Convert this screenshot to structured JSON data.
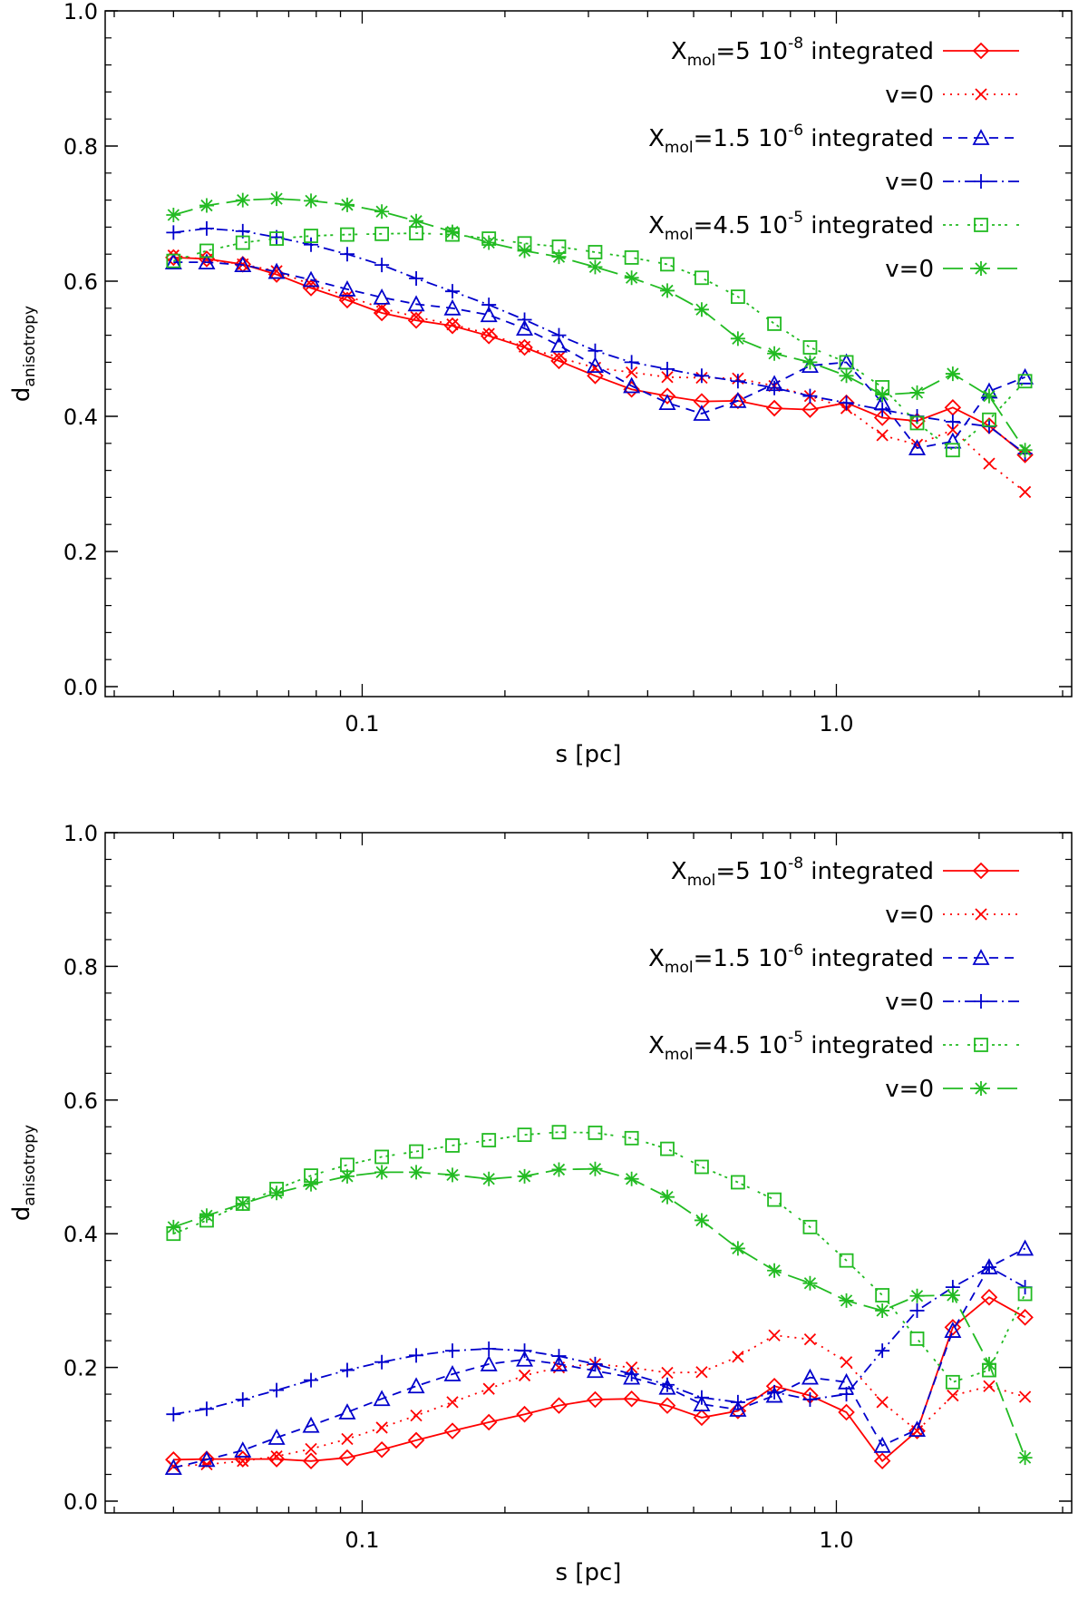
{
  "chart_data": [
    {
      "type": "line",
      "xlabel": "s [pc]",
      "ylabel": "d",
      "ylabel_sub": "anisotropy",
      "xscale": "log",
      "xlim": [
        0.03,
        3.0
      ],
      "ylim": [
        0.0,
        1.0
      ],
      "xticks": [
        {
          "v": 0.1,
          "label": "0.1"
        },
        {
          "v": 1.0,
          "label": "1.0"
        }
      ],
      "yticks": [
        {
          "v": 0.0,
          "label": "0.0"
        },
        {
          "v": 0.2,
          "label": "0.2"
        },
        {
          "v": 0.4,
          "label": "0.4"
        },
        {
          "v": 0.6,
          "label": "0.6"
        },
        {
          "v": 0.8,
          "label": "0.8"
        },
        {
          "v": 1.0,
          "label": "1.0"
        }
      ],
      "legend_position": "top-right",
      "x": [
        0.04,
        0.047,
        0.056,
        0.066,
        0.078,
        0.093,
        0.11,
        0.13,
        0.155,
        0.185,
        0.22,
        0.26,
        0.31,
        0.37,
        0.44,
        0.52,
        0.62,
        0.74,
        0.88,
        1.05,
        1.25,
        1.48,
        1.76,
        2.1,
        2.5
      ],
      "series": [
        {
          "name": "Xmol=5e-8 integrated",
          "legend": {
            "pre": "X",
            "sub": "mol",
            "mid": "=5  10",
            "sup": "-8",
            "post": " integrated"
          },
          "color": "#ff0000",
          "marker": "diamond",
          "dash": "",
          "values": [
            0.635,
            0.633,
            0.625,
            0.61,
            0.59,
            0.572,
            0.553,
            0.542,
            0.534,
            0.519,
            0.502,
            0.482,
            0.46,
            0.44,
            0.43,
            0.422,
            0.423,
            0.412,
            0.41,
            0.42,
            0.398,
            0.393,
            0.413,
            0.386,
            0.343
          ]
        },
        {
          "name": "Xmol=5e-8 v=0",
          "legend": {
            "pre": "v=0",
            "sub": "",
            "mid": "",
            "sup": "",
            "post": ""
          },
          "color": "#ff0000",
          "marker": "x",
          "dash": "2,6",
          "values": [
            0.638,
            0.632,
            0.625,
            0.615,
            0.595,
            0.578,
            0.56,
            0.547,
            0.536,
            0.522,
            0.503,
            0.487,
            0.472,
            0.465,
            0.458,
            0.457,
            0.456,
            0.445,
            0.43,
            0.412,
            0.372,
            0.358,
            0.38,
            0.33,
            0.288
          ]
        },
        {
          "name": "Xmol=1.5e-6 integrated",
          "legend": {
            "pre": "X",
            "sub": "mol",
            "mid": "=1.5  10",
            "sup": "-6",
            "post": " integrated"
          },
          "color": "#0000cc",
          "marker": "triangle",
          "dash": "10,7",
          "values": [
            0.628,
            0.628,
            0.624,
            0.614,
            0.602,
            0.588,
            0.576,
            0.566,
            0.56,
            0.55,
            0.53,
            0.505,
            0.475,
            0.445,
            0.42,
            0.404,
            0.423,
            0.448,
            0.475,
            0.48,
            0.42,
            0.353,
            0.363,
            0.437,
            0.458
          ]
        },
        {
          "name": "Xmol=1.5e-6 v=0",
          "legend": {
            "pre": "v=0",
            "sub": "",
            "mid": "",
            "sup": "",
            "post": ""
          },
          "color": "#0000cc",
          "marker": "plus",
          "dash": "12,5,2,5",
          "values": [
            0.672,
            0.678,
            0.674,
            0.665,
            0.654,
            0.64,
            0.624,
            0.604,
            0.585,
            0.565,
            0.543,
            0.52,
            0.497,
            0.48,
            0.47,
            0.46,
            0.452,
            0.442,
            0.43,
            0.42,
            0.41,
            0.4,
            0.392,
            0.385,
            0.345
          ]
        },
        {
          "name": "Xmol=4.5e-5 integrated",
          "legend": {
            "pre": "X",
            "sub": "mol",
            "mid": "=4.5  10",
            "sup": "-5",
            "post": " integrated"
          },
          "color": "#22bb22",
          "marker": "square",
          "dash": "3,4,3,4,3,10",
          "values": [
            0.63,
            0.645,
            0.657,
            0.663,
            0.667,
            0.669,
            0.67,
            0.671,
            0.669,
            0.663,
            0.656,
            0.651,
            0.643,
            0.635,
            0.625,
            0.605,
            0.577,
            0.537,
            0.502,
            0.48,
            0.443,
            0.39,
            0.35,
            0.395,
            0.452
          ]
        },
        {
          "name": "Xmol=4.5e-5 v=0",
          "legend": {
            "pre": "v=0",
            "sub": "",
            "mid": "",
            "sup": "",
            "post": ""
          },
          "color": "#22bb22",
          "marker": "asterisk",
          "dash": "22,8",
          "values": [
            0.698,
            0.712,
            0.72,
            0.722,
            0.719,
            0.713,
            0.703,
            0.689,
            0.673,
            0.657,
            0.645,
            0.636,
            0.621,
            0.605,
            0.586,
            0.558,
            0.515,
            0.493,
            0.48,
            0.46,
            0.432,
            0.435,
            0.463,
            0.43,
            0.35
          ]
        }
      ]
    },
    {
      "type": "line",
      "xlabel": "s [pc]",
      "ylabel": "d",
      "ylabel_sub": "anisotropy",
      "xscale": "log",
      "xlim": [
        0.03,
        3.0
      ],
      "ylim": [
        0.0,
        1.0
      ],
      "xticks": [
        {
          "v": 0.1,
          "label": "0.1"
        },
        {
          "v": 1.0,
          "label": "1.0"
        }
      ],
      "yticks": [
        {
          "v": 0.0,
          "label": "0.0"
        },
        {
          "v": 0.2,
          "label": "0.2"
        },
        {
          "v": 0.4,
          "label": "0.4"
        },
        {
          "v": 0.6,
          "label": "0.6"
        },
        {
          "v": 0.8,
          "label": "0.8"
        },
        {
          "v": 1.0,
          "label": "1.0"
        }
      ],
      "legend_position": "top-right",
      "x": [
        0.04,
        0.047,
        0.056,
        0.066,
        0.078,
        0.093,
        0.11,
        0.13,
        0.155,
        0.185,
        0.22,
        0.26,
        0.31,
        0.37,
        0.44,
        0.52,
        0.62,
        0.74,
        0.88,
        1.05,
        1.25,
        1.48,
        1.76,
        2.1,
        2.5
      ],
      "series": [
        {
          "name": "Xmol=5e-8 integrated",
          "legend": {
            "pre": "X",
            "sub": "mol",
            "mid": "=5  10",
            "sup": "-8",
            "post": " integrated"
          },
          "color": "#ff0000",
          "marker": "diamond",
          "dash": "",
          "values": [
            0.062,
            0.063,
            0.063,
            0.063,
            0.06,
            0.065,
            0.077,
            0.091,
            0.105,
            0.118,
            0.13,
            0.143,
            0.152,
            0.153,
            0.143,
            0.125,
            0.135,
            0.172,
            0.158,
            0.133,
            0.06,
            0.105,
            0.26,
            0.305,
            0.275
          ]
        },
        {
          "name": "Xmol=5e-8 v=0",
          "legend": {
            "pre": "v=0",
            "sub": "",
            "mid": "",
            "sup": "",
            "post": ""
          },
          "color": "#ff0000",
          "marker": "x",
          "dash": "2,6",
          "values": [
            0.052,
            0.055,
            0.06,
            0.067,
            0.078,
            0.093,
            0.11,
            0.128,
            0.148,
            0.168,
            0.188,
            0.2,
            0.205,
            0.2,
            0.192,
            0.193,
            0.216,
            0.248,
            0.242,
            0.208,
            0.148,
            0.105,
            0.158,
            0.172,
            0.156
          ]
        },
        {
          "name": "Xmol=1.5e-6 integrated",
          "legend": {
            "pre": "X",
            "sub": "mol",
            "mid": "=1.5  10",
            "sup": "-6",
            "post": " integrated"
          },
          "color": "#0000cc",
          "marker": "triangle",
          "dash": "10,7",
          "values": [
            0.05,
            0.062,
            0.076,
            0.095,
            0.113,
            0.133,
            0.153,
            0.172,
            0.19,
            0.205,
            0.212,
            0.205,
            0.195,
            0.185,
            0.17,
            0.145,
            0.137,
            0.158,
            0.185,
            0.178,
            0.083,
            0.107,
            0.255,
            0.35,
            0.378
          ]
        },
        {
          "name": "Xmol=1.5e-6 v=0",
          "legend": {
            "pre": "v=0",
            "sub": "",
            "mid": "",
            "sup": "",
            "post": ""
          },
          "color": "#0000cc",
          "marker": "plus",
          "dash": "12,5,2,5",
          "values": [
            0.13,
            0.138,
            0.152,
            0.166,
            0.181,
            0.196,
            0.208,
            0.218,
            0.225,
            0.228,
            0.225,
            0.217,
            0.205,
            0.19,
            0.174,
            0.155,
            0.148,
            0.163,
            0.152,
            0.16,
            0.225,
            0.285,
            0.32,
            0.35,
            0.32
          ]
        },
        {
          "name": "Xmol=4.5e-5 integrated",
          "legend": {
            "pre": "X",
            "sub": "mol",
            "mid": "=4.5  10",
            "sup": "-5",
            "post": " integrated"
          },
          "color": "#22bb22",
          "marker": "square",
          "dash": "3,4,3,4,3,10",
          "values": [
            0.4,
            0.42,
            0.445,
            0.467,
            0.487,
            0.503,
            0.515,
            0.523,
            0.532,
            0.54,
            0.548,
            0.552,
            0.551,
            0.543,
            0.527,
            0.5,
            0.477,
            0.451,
            0.41,
            0.36,
            0.308,
            0.243,
            0.178,
            0.196,
            0.31
          ]
        },
        {
          "name": "Xmol=4.5e-5 v=0",
          "legend": {
            "pre": "v=0",
            "sub": "",
            "mid": "",
            "sup": "",
            "post": ""
          },
          "color": "#22bb22",
          "marker": "asterisk",
          "dash": "22,8",
          "values": [
            0.41,
            0.427,
            0.445,
            0.461,
            0.474,
            0.486,
            0.492,
            0.492,
            0.488,
            0.482,
            0.486,
            0.496,
            0.497,
            0.482,
            0.455,
            0.42,
            0.378,
            0.345,
            0.326,
            0.3,
            0.285,
            0.307,
            0.308,
            0.205,
            0.065
          ]
        }
      ]
    }
  ]
}
